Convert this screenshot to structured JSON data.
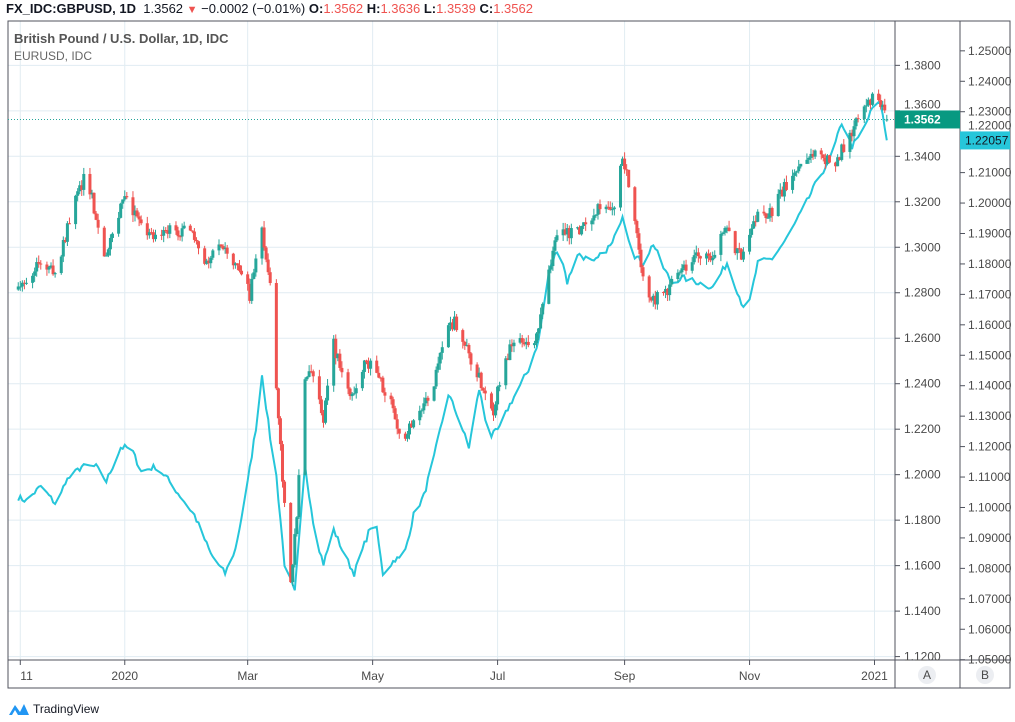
{
  "header": {
    "symbol": "FX_IDC:GBPUSD, 1D",
    "last": "1.3562",
    "change": "−0.0002 (−0.01%)",
    "o_label": "O:",
    "o": "1.3562",
    "h_label": "H:",
    "h": "1.3636",
    "l_label": "L:",
    "l": "1.3539",
    "c_label": "C:",
    "c": "1.3562"
  },
  "legend": {
    "main": "British Pound / U.S. Dollar, 1D, IDC",
    "compare": "EURUSD, IDC"
  },
  "brand": "TradingView",
  "scale_buttons": [
    "A",
    "B"
  ],
  "colors": {
    "up": "#26a69a",
    "down": "#ef5350",
    "compare": "#26c6da",
    "grid": "#e1ecf2"
  },
  "chart_data": {
    "type": "candlestick+line",
    "title": "British Pound / U.S. Dollar, 1D, IDC",
    "x_unit": "days since 2020-01-01",
    "x_range": [
      -57,
      376
    ],
    "x_ticks": [
      {
        "day": -51,
        "label": "11"
      },
      {
        "day": 0,
        "label": "2020"
      },
      {
        "day": 60,
        "label": "Mar"
      },
      {
        "day": 121,
        "label": "May"
      },
      {
        "day": 182,
        "label": "Jul"
      },
      {
        "day": 244,
        "label": "Sep"
      },
      {
        "day": 305,
        "label": "Nov"
      },
      {
        "day": 366,
        "label": "2021"
      }
    ],
    "left_axis": {
      "ylim": [
        1.1185,
        1.3995
      ],
      "ticks": [
        "1.3800",
        "1.3600",
        "1.3400",
        "1.3200",
        "1.3000",
        "1.2800",
        "1.2600",
        "1.2400",
        "1.2200",
        "1.2000",
        "1.1800",
        "1.1600",
        "1.1400",
        "1.1200"
      ],
      "last_label": "1.3562"
    },
    "right_axis": {
      "ylim": [
        1.0499,
        1.2598
      ],
      "ticks": [
        "1.25000",
        "1.24000",
        "1.23000",
        "1.22000",
        "1.21000",
        "1.20000",
        "1.19000",
        "1.18000",
        "1.17000",
        "1.16000",
        "1.15000",
        "1.14000",
        "1.13000",
        "1.12000",
        "1.11000",
        "1.10000",
        "1.09000",
        "1.08000",
        "1.07000",
        "1.06000",
        "1.05000"
      ],
      "last_label": "1.22057"
    },
    "series": [
      {
        "name": "GBPUSD",
        "type": "candlestick",
        "axis": "left",
        "points": [
          [
            -54,
            1.2814
          ],
          [
            -43,
            1.2923
          ],
          [
            -33,
            1.2901
          ],
          [
            -26,
            1.3163
          ],
          [
            -19,
            1.3317
          ],
          [
            -14,
            1.3142
          ],
          [
            -9,
            1.2945
          ],
          [
            0,
            1.3251
          ],
          [
            8,
            1.3076
          ],
          [
            15,
            1.3032
          ],
          [
            22,
            1.3076
          ],
          [
            32,
            1.3076
          ],
          [
            39,
            1.2923
          ],
          [
            47,
            1.3032
          ],
          [
            54,
            1.2923
          ],
          [
            61,
            1.2792
          ],
          [
            67,
            1.3076
          ],
          [
            71,
            1.2814
          ],
          [
            73,
            1.2507
          ],
          [
            77,
            1.1981
          ],
          [
            81,
            1.1543
          ],
          [
            84,
            1.1806
          ],
          [
            87,
            1.242
          ],
          [
            93,
            1.2442
          ],
          [
            97,
            1.2245
          ],
          [
            102,
            1.2573
          ],
          [
            107,
            1.2398
          ],
          [
            112,
            1.2332
          ],
          [
            117,
            1.2507
          ],
          [
            122,
            1.2464
          ],
          [
            129,
            1.2332
          ],
          [
            136,
            1.2157
          ],
          [
            141,
            1.2245
          ],
          [
            149,
            1.2332
          ],
          [
            156,
            1.2595
          ],
          [
            161,
            1.2683
          ],
          [
            166,
            1.2573
          ],
          [
            173,
            1.242
          ],
          [
            180,
            1.2289
          ],
          [
            185,
            1.2507
          ],
          [
            192,
            1.2595
          ],
          [
            200,
            1.2551
          ],
          [
            207,
            1.2902
          ],
          [
            212,
            1.3099
          ],
          [
            219,
            1.3055
          ],
          [
            226,
            1.312
          ],
          [
            233,
            1.3208
          ],
          [
            238,
            1.3142
          ],
          [
            243,
            1.3383
          ],
          [
            248,
            1.3208
          ],
          [
            253,
            1.2858
          ],
          [
            258,
            1.277
          ],
          [
            265,
            1.2814
          ],
          [
            272,
            1.2902
          ],
          [
            280,
            1.2967
          ],
          [
            287,
            1.2967
          ],
          [
            294,
            1.3076
          ],
          [
            301,
            1.2945
          ],
          [
            309,
            1.3142
          ],
          [
            316,
            1.3164
          ],
          [
            323,
            1.3273
          ],
          [
            331,
            1.3383
          ],
          [
            338,
            1.3427
          ],
          [
            345,
            1.3361
          ],
          [
            352,
            1.3449
          ],
          [
            360,
            1.3602
          ],
          [
            365,
            1.3646
          ],
          [
            369,
            1.3624
          ],
          [
            372,
            1.3562
          ]
        ]
      },
      {
        "name": "EURUSD",
        "type": "line",
        "axis": "right",
        "points": [
          [
            -54,
            1.1038
          ],
          [
            -48,
            1.1022
          ],
          [
            -41,
            1.107
          ],
          [
            -33,
            1.1006
          ],
          [
            -29,
            1.1086
          ],
          [
            -21,
            1.1134
          ],
          [
            -14,
            1.1134
          ],
          [
            -9,
            1.1086
          ],
          [
            -2,
            1.1197
          ],
          [
            3,
            1.1197
          ],
          [
            8,
            1.1118
          ],
          [
            15,
            1.1134
          ],
          [
            20,
            1.1102
          ],
          [
            27,
            1.1038
          ],
          [
            34,
            1.0975
          ],
          [
            42,
            1.0847
          ],
          [
            49,
            1.0783
          ],
          [
            54,
            1.0863
          ],
          [
            59,
            1.1038
          ],
          [
            64,
            1.1261
          ],
          [
            67,
            1.1436
          ],
          [
            71,
            1.1229
          ],
          [
            74,
            1.1102
          ],
          [
            78,
            1.0815
          ],
          [
            83,
            1.072
          ],
          [
            88,
            1.1134
          ],
          [
            93,
            1.0911
          ],
          [
            97,
            1.0815
          ],
          [
            102,
            1.0927
          ],
          [
            107,
            1.0847
          ],
          [
            112,
            1.0783
          ],
          [
            117,
            1.0879
          ],
          [
            122,
            1.0975
          ],
          [
            126,
            1.0783
          ],
          [
            132,
            1.0831
          ],
          [
            136,
            1.0831
          ],
          [
            141,
            1.0975
          ],
          [
            146,
            1.1038
          ],
          [
            151,
            1.1166
          ],
          [
            158,
            1.1373
          ],
          [
            163,
            1.1293
          ],
          [
            168,
            1.1197
          ],
          [
            173,
            1.1389
          ],
          [
            178,
            1.1229
          ],
          [
            183,
            1.1261
          ],
          [
            187,
            1.1325
          ],
          [
            192,
            1.1389
          ],
          [
            197,
            1.1452
          ],
          [
            202,
            1.1548
          ],
          [
            207,
            1.1771
          ],
          [
            212,
            1.1866
          ],
          [
            216,
            1.1739
          ],
          [
            221,
            1.1834
          ],
          [
            229,
            1.1803
          ],
          [
            233,
            1.1834
          ],
          [
            238,
            1.1866
          ],
          [
            243,
            1.1962
          ],
          [
            248,
            1.1834
          ],
          [
            253,
            1.1803
          ],
          [
            258,
            1.1866
          ],
          [
            263,
            1.1787
          ],
          [
            267,
            1.1739
          ],
          [
            272,
            1.1755
          ],
          [
            280,
            1.1739
          ],
          [
            287,
            1.1723
          ],
          [
            294,
            1.1803
          ],
          [
            301,
            1.1675
          ],
          [
            304,
            1.1643
          ],
          [
            309,
            1.1803
          ],
          [
            316,
            1.1818
          ],
          [
            323,
            1.1882
          ],
          [
            331,
            1.1978
          ],
          [
            338,
            1.2073
          ],
          [
            345,
            1.2153
          ],
          [
            350,
            1.2264
          ],
          [
            355,
            1.2185
          ],
          [
            360,
            1.2232
          ],
          [
            365,
            1.2312
          ],
          [
            369,
            1.2328
          ],
          [
            372,
            1.2206
          ]
        ]
      }
    ]
  }
}
